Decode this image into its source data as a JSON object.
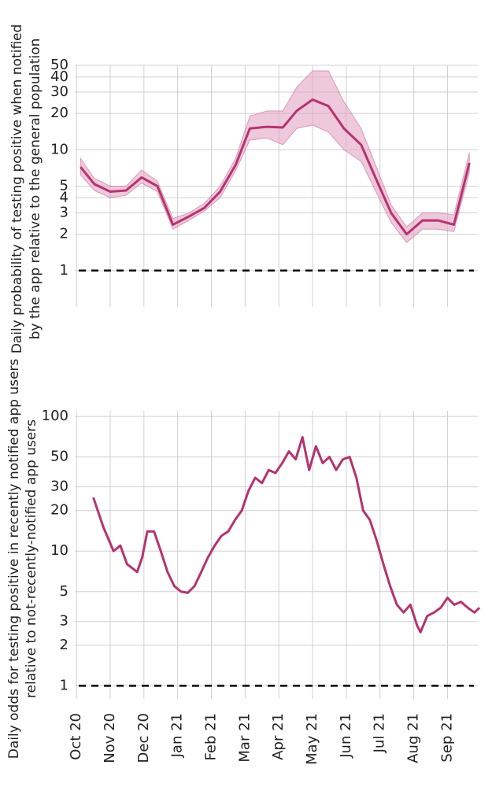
{
  "chart_data": [
    {
      "type": "line",
      "yscale": "log",
      "grid": true,
      "color": "#b5336f",
      "band_color": "#e2a3c3",
      "ylabel": [
        "Daily probability of testing positive when notified",
        "by the app relative to the general population"
      ],
      "xlim": [
        -0.05,
        11.9
      ],
      "xticks": [
        0,
        1,
        2,
        3,
        4,
        5,
        6,
        7,
        8,
        9,
        10,
        11
      ],
      "ylim": [
        0.5,
        50
      ],
      "yticks": [
        1,
        2,
        3,
        4,
        5,
        10,
        20,
        30,
        40,
        50
      ],
      "reference_line": 1,
      "x": [
        0.12,
        0.53,
        1.0,
        1.47,
        1.93,
        2.4,
        2.86,
        3.33,
        3.79,
        4.26,
        4.72,
        5.14,
        5.65,
        6.12,
        6.53,
        7.0,
        7.47,
        7.93,
        8.44,
        8.91,
        9.33,
        9.79,
        10.26,
        10.72,
        11.19,
        11.65
      ],
      "values": [
        7.2,
        5.2,
        4.5,
        4.6,
        5.9,
        5.0,
        2.4,
        2.8,
        3.3,
        4.5,
        7.5,
        15,
        15.5,
        15.3,
        21,
        26,
        23,
        15,
        11,
        5.5,
        3,
        2,
        2.6,
        2.6,
        2.4,
        7.8
      ],
      "upper": [
        8.5,
        5.8,
        5,
        5,
        6.8,
        5.5,
        2.7,
        3,
        3.6,
        5,
        8.5,
        19,
        21,
        21,
        33,
        45,
        45,
        25,
        15,
        7,
        3.5,
        2.3,
        3,
        3,
        2.9,
        9.5
      ],
      "lower": [
        6.2,
        4.6,
        4,
        4.2,
        5.3,
        4.5,
        2.2,
        2.6,
        3.1,
        4,
        6.7,
        12,
        12.5,
        11,
        15,
        16,
        14,
        10,
        8,
        4.3,
        2.5,
        1.7,
        2.2,
        2.2,
        2.1,
        6.5
      ]
    },
    {
      "type": "line",
      "yscale": "log",
      "grid": true,
      "color": "#b5336f",
      "ylabel": [
        "Daily odds for testing positive in recently notified app users",
        "relative to not-recently-notified app users"
      ],
      "xlim": [
        -0.05,
        11.9
      ],
      "xticks": [
        {
          "value": 0,
          "label": "Oct 20"
        },
        {
          "value": 1,
          "label": "Nov 20"
        },
        {
          "value": 2,
          "label": "Dec 20"
        },
        {
          "value": 3,
          "label": "Jan 21"
        },
        {
          "value": 4,
          "label": "Feb 21"
        },
        {
          "value": 5,
          "label": "Mar 21"
        },
        {
          "value": 6,
          "label": "Apr 21"
        },
        {
          "value": 7,
          "label": "May 21"
        },
        {
          "value": 8,
          "label": "Jun 21"
        },
        {
          "value": 9,
          "label": "Jul 21"
        },
        {
          "value": 10,
          "label": "Aug 21"
        },
        {
          "value": 11,
          "label": "Sep 21"
        }
      ],
      "ylim": [
        0.8,
        110
      ],
      "yticks": [
        1,
        2,
        3,
        5,
        10,
        20,
        30,
        50,
        100
      ],
      "reference_line": 1,
      "x": [
        0.5,
        0.8,
        1.1,
        1.3,
        1.5,
        1.8,
        1.95,
        2.1,
        2.3,
        2.5,
        2.7,
        2.9,
        3.1,
        3.3,
        3.5,
        3.7,
        3.9,
        4.1,
        4.3,
        4.5,
        4.7,
        4.9,
        5.1,
        5.3,
        5.5,
        5.7,
        5.9,
        6.1,
        6.3,
        6.5,
        6.7,
        6.9,
        7.1,
        7.3,
        7.5,
        7.7,
        7.9,
        8.1,
        8.3,
        8.5,
        8.7,
        8.9,
        9.1,
        9.3,
        9.5,
        9.7,
        9.9,
        10.1,
        10.2,
        10.4,
        10.6,
        10.8,
        11.0,
        11.2,
        11.4,
        11.6,
        11.8,
        11.95
      ],
      "values": [
        25,
        15,
        10,
        11,
        8,
        7,
        9,
        14,
        14,
        10,
        7,
        5.5,
        5,
        4.9,
        5.5,
        7,
        9,
        11,
        13,
        14,
        17,
        20,
        28,
        35,
        32,
        40,
        38,
        45,
        55,
        48,
        70,
        40,
        60,
        45,
        50,
        40,
        48,
        50,
        35,
        20,
        17,
        12,
        8,
        5.5,
        4,
        3.5,
        4,
        2.8,
        2.5,
        3.3,
        3.5,
        3.8,
        4.5,
        4,
        4.2,
        3.8,
        3.5,
        3.8
      ]
    }
  ]
}
